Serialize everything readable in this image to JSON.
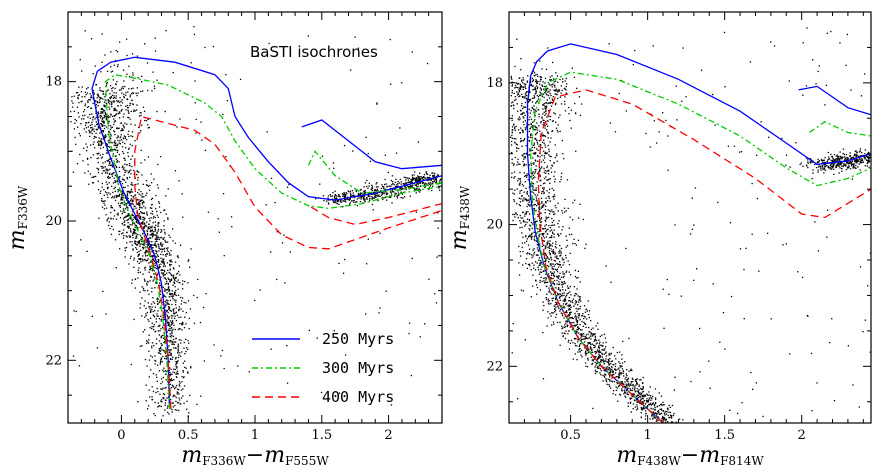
{
  "colors": {
    "250": "#0000ff",
    "300": "#00cc00",
    "400": "#ff0000",
    "stars": "#000000"
  },
  "chart_data": [
    {
      "type": "scatter",
      "annotation": "BaSTI isochrones",
      "xlabel": {
        "main": "m",
        "sub1": "F336W",
        "dash": "−",
        "main2": "m",
        "sub2": "F555W"
      },
      "ylabel": {
        "main": "m",
        "sub": "F336W"
      },
      "xlim": [
        -0.4,
        2.4
      ],
      "ylim": [
        22.9,
        17.0
      ],
      "y_inverted": true,
      "xticks": [
        {
          "v": 0,
          "label": "0"
        },
        {
          "v": 0.5,
          "label": "0.5"
        },
        {
          "v": 1,
          "label": "1"
        },
        {
          "v": 1.5,
          "label": "1.5"
        },
        {
          "v": 2,
          "label": "2"
        }
      ],
      "yticks": [
        {
          "v": 18,
          "label": "18"
        },
        {
          "v": 20,
          "label": "20"
        },
        {
          "v": 22,
          "label": "22"
        }
      ],
      "legend": {
        "placement": "bottom-right",
        "entries": [
          "250 Myrs",
          "300 Myrs",
          "400 Myrs"
        ]
      },
      "series": [
        {
          "name": "250 Myrs",
          "style": "solid",
          "x": [
            0.36,
            0.35,
            0.33,
            0.3,
            0.25,
            0.18,
            0.1,
            0.02,
            -0.08,
            -0.17,
            -0.22,
            -0.18,
            -0.08,
            0.1,
            0.4,
            0.7,
            0.8,
            0.85,
            0.95,
            1.1,
            1.25,
            1.4,
            1.6,
            1.9,
            2.2,
            2.4
          ],
          "y": [
            22.7,
            22.0,
            21.4,
            20.9,
            20.5,
            20.2,
            19.9,
            19.6,
            19.1,
            18.6,
            18.1,
            17.85,
            17.72,
            17.65,
            17.72,
            17.9,
            18.1,
            18.5,
            18.8,
            19.15,
            19.45,
            19.65,
            19.7,
            19.6,
            19.45,
            19.35
          ]
        },
        {
          "name": "250 Myrs",
          "style": "solid",
          "x": [
            1.35,
            1.5,
            1.7,
            1.9,
            2.1,
            2.4
          ],
          "y": [
            18.65,
            18.55,
            18.85,
            19.15,
            19.25,
            19.2
          ]
        },
        {
          "name": "300 Myrs",
          "style": "dashdot",
          "x": [
            0.36,
            0.34,
            0.31,
            0.27,
            0.21,
            0.14,
            0.06,
            -0.02,
            -0.1,
            -0.12,
            -0.05,
            0.1,
            0.35,
            0.62,
            0.75,
            0.85,
            1.0,
            1.2,
            1.4,
            1.55,
            1.8,
            2.1,
            2.4
          ],
          "y": [
            22.7,
            22.0,
            21.4,
            20.9,
            20.5,
            20.2,
            19.9,
            19.5,
            18.7,
            18.0,
            17.9,
            17.95,
            18.05,
            18.3,
            18.5,
            18.85,
            19.25,
            19.6,
            19.78,
            19.82,
            19.75,
            19.6,
            19.5
          ]
        },
        {
          "name": "300 Myrs",
          "style": "dashdot",
          "x": [
            1.4,
            1.45,
            1.6,
            1.8,
            2.1,
            2.4
          ],
          "y": [
            19.2,
            19.0,
            19.35,
            19.6,
            19.55,
            19.45
          ]
        },
        {
          "name": "400 Myrs",
          "style": "dashed",
          "x": [
            0.37,
            0.35,
            0.32,
            0.28,
            0.22,
            0.17,
            0.12,
            0.1,
            0.1,
            0.15,
            0.35,
            0.55,
            0.7,
            0.85,
            1.0,
            1.2,
            1.4,
            1.55,
            1.7,
            2.0,
            2.4
          ],
          "y": [
            22.7,
            22.0,
            21.4,
            20.9,
            20.5,
            20.2,
            19.9,
            19.5,
            19.0,
            18.5,
            18.6,
            18.7,
            18.9,
            19.3,
            19.8,
            20.2,
            20.38,
            20.4,
            20.3,
            20.1,
            19.85
          ]
        },
        {
          "name": "400 Myrs",
          "style": "dashed",
          "x": [
            1.42,
            1.55,
            1.75,
            2.0,
            2.4
          ],
          "y": [
            19.8,
            19.95,
            20.05,
            19.95,
            19.75
          ]
        }
      ]
    },
    {
      "type": "scatter",
      "xlabel": {
        "main": "m",
        "sub1": "F438W",
        "dash": "−",
        "main2": "m",
        "sub2": "F814W"
      },
      "ylabel": {
        "main": "m",
        "sub": "F438W"
      },
      "xlim": [
        0.1,
        2.45
      ],
      "ylim": [
        22.8,
        17.0
      ],
      "y_inverted": true,
      "xticks": [
        {
          "v": 0.5,
          "label": "0.5"
        },
        {
          "v": 1,
          "label": "1"
        },
        {
          "v": 1.5,
          "label": "1.5"
        },
        {
          "v": 2,
          "label": "2"
        }
      ],
      "yticks": [
        {
          "v": 18,
          "label": "18"
        },
        {
          "v": 20,
          "label": "20"
        },
        {
          "v": 22,
          "label": "22"
        }
      ],
      "series": [
        {
          "name": "250 Myrs",
          "style": "solid",
          "x": [
            1.1,
            0.9,
            0.7,
            0.55,
            0.42,
            0.33,
            0.27,
            0.24,
            0.22,
            0.22,
            0.24,
            0.28,
            0.35,
            0.5,
            0.8,
            1.2,
            1.6,
            1.9,
            2.1,
            2.3,
            2.45
          ],
          "y": [
            22.8,
            22.4,
            22.0,
            21.6,
            21.1,
            20.6,
            20.1,
            19.6,
            19.0,
            18.3,
            17.9,
            17.7,
            17.55,
            17.45,
            17.6,
            17.95,
            18.4,
            18.85,
            19.15,
            19.1,
            19.0
          ]
        },
        {
          "name": "250 Myrs",
          "style": "solid",
          "x": [
            1.98,
            2.1,
            2.3,
            2.45
          ],
          "y": [
            18.1,
            18.05,
            18.35,
            18.45
          ]
        },
        {
          "name": "300 Myrs",
          "style": "dashdot",
          "x": [
            1.1,
            0.9,
            0.7,
            0.55,
            0.42,
            0.33,
            0.28,
            0.25,
            0.24,
            0.27,
            0.35,
            0.5,
            0.8,
            1.2,
            1.6,
            1.9,
            2.1,
            2.3,
            2.45
          ],
          "y": [
            22.8,
            22.4,
            22.0,
            21.6,
            21.1,
            20.6,
            20.1,
            19.6,
            19.0,
            18.4,
            18.0,
            17.85,
            17.95,
            18.3,
            18.75,
            19.2,
            19.45,
            19.35,
            19.2
          ]
        },
        {
          "name": "300 Myrs",
          "style": "dashdot",
          "x": [
            2.05,
            2.15,
            2.3,
            2.45
          ],
          "y": [
            18.7,
            18.55,
            18.7,
            18.75
          ]
        },
        {
          "name": "400 Myrs",
          "style": "dashed",
          "x": [
            1.1,
            0.9,
            0.7,
            0.55,
            0.42,
            0.34,
            0.3,
            0.29,
            0.31,
            0.4,
            0.6,
            0.9,
            1.3,
            1.7,
            2.0,
            2.15,
            2.3,
            2.45
          ],
          "y": [
            22.8,
            22.4,
            22.0,
            21.6,
            21.1,
            20.6,
            20.0,
            19.4,
            18.7,
            18.2,
            18.1,
            18.3,
            18.8,
            19.35,
            19.85,
            19.9,
            19.7,
            19.5
          ]
        }
      ]
    }
  ]
}
